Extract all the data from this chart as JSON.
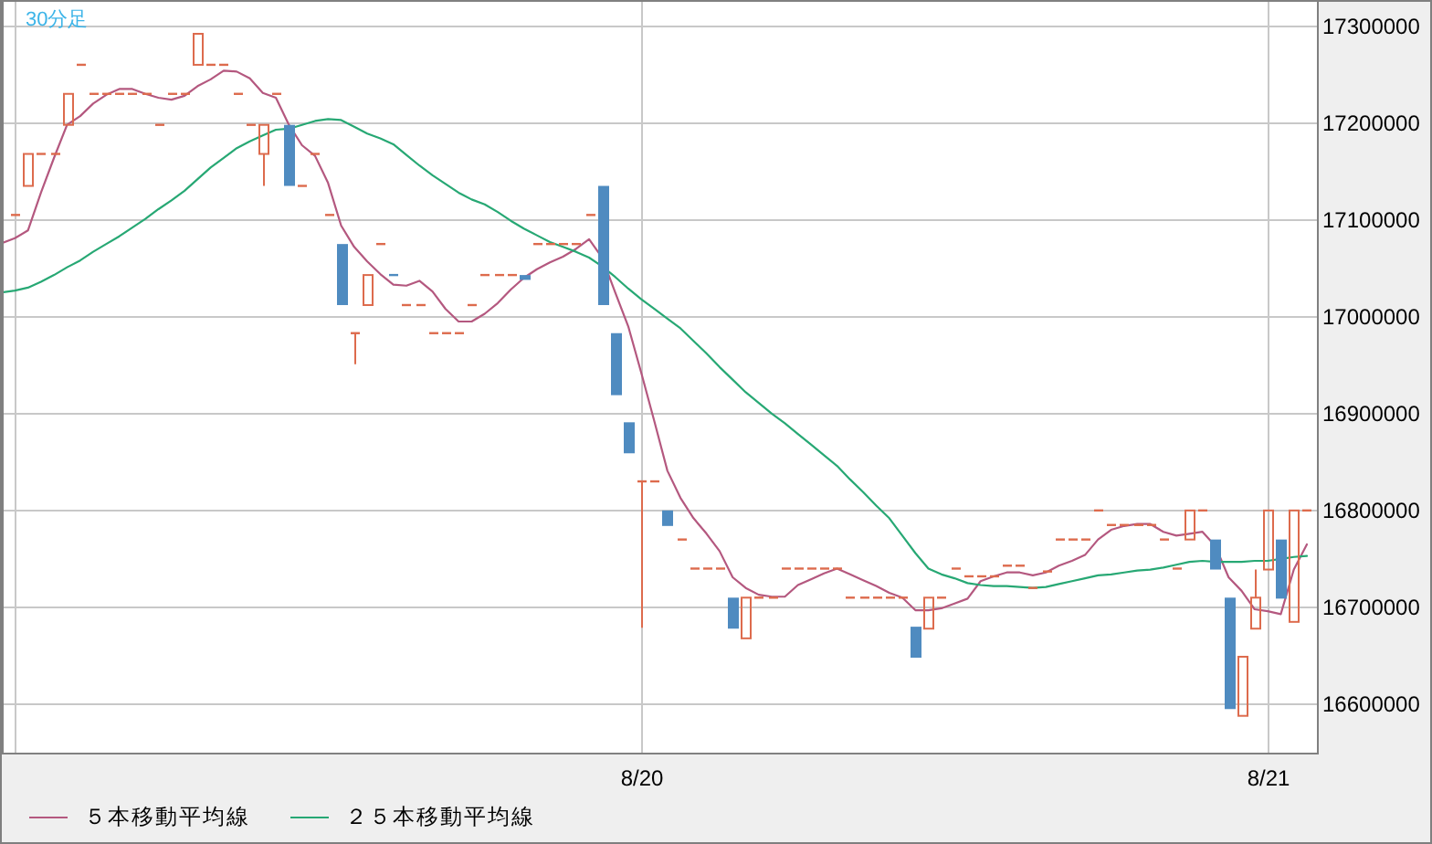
{
  "chart_data": {
    "type": "candlestick",
    "title": "30分足",
    "categories": [
      null,
      null,
      null,
      null,
      null,
      null,
      null,
      null,
      null,
      null,
      null,
      null,
      null,
      null,
      null,
      null,
      null,
      null,
      null,
      null,
      null,
      null,
      null,
      null,
      null,
      null,
      null,
      null,
      null,
      null,
      null,
      null,
      null,
      null,
      null,
      null,
      null,
      null,
      null,
      null,
      null,
      null,
      null,
      null,
      null,
      null,
      null,
      null,
      null,
      "8/20",
      null,
      null,
      null,
      null,
      null,
      null,
      null,
      null,
      null,
      null,
      null,
      null,
      null,
      null,
      null,
      null,
      null,
      null,
      null,
      null,
      null,
      null,
      null,
      null,
      null,
      null,
      null,
      null,
      null,
      null,
      null,
      null,
      null,
      null,
      null,
      null,
      null,
      null,
      null,
      null,
      null,
      null,
      null,
      null,
      null,
      null,
      null,
      "8/21",
      null,
      null,
      null
    ],
    "ohlc": [
      null,
      [
        17105000,
        17105000,
        17105000,
        17105000
      ],
      [
        17135000,
        17168000,
        17135000,
        17168000
      ],
      [
        17168000,
        17168000,
        17168000,
        17168000
      ],
      [
        17168000,
        17168000,
        17168000,
        17168000
      ],
      [
        17198000,
        17230000,
        17198000,
        17230000
      ],
      [
        17260000,
        17260000,
        17260000,
        17260000
      ],
      [
        17230000,
        17230000,
        17230000,
        17230000
      ],
      [
        17230000,
        17230000,
        17230000,
        17230000
      ],
      [
        17230000,
        17230000,
        17230000,
        17230000
      ],
      [
        17230000,
        17230000,
        17230000,
        17230000
      ],
      [
        17230000,
        17230000,
        17230000,
        17230000
      ],
      [
        17198000,
        17198000,
        17198000,
        17198000
      ],
      [
        17230000,
        17230000,
        17230000,
        17230000
      ],
      [
        17230000,
        17230000,
        17230000,
        17230000
      ],
      [
        17260000,
        17292000,
        17260000,
        17292000
      ],
      [
        17260000,
        17260000,
        17260000,
        17260000
      ],
      [
        17260000,
        17260000,
        17260000,
        17260000
      ],
      [
        17230000,
        17230000,
        17230000,
        17230000
      ],
      [
        17198000,
        17198000,
        17198000,
        17198000
      ],
      [
        17168000,
        17198000,
        17135000,
        17198000
      ],
      [
        17230000,
        17230000,
        17230000,
        17230000
      ],
      [
        17198000,
        17198000,
        17135000,
        17135000
      ],
      [
        17135000,
        17135000,
        17135000,
        17135000
      ],
      [
        17168000,
        17168000,
        17168000,
        17168000
      ],
      [
        17105000,
        17105000,
        17105000,
        17105000
      ],
      [
        17075000,
        17075000,
        17012000,
        17012000
      ],
      [
        16983000,
        16983000,
        16951000,
        16983000
      ],
      [
        17012000,
        17043000,
        17012000,
        17043000
      ],
      [
        17075000,
        17075000,
        17075000,
        17075000
      ],
      [
        17043000,
        17043000,
        17043000,
        17043000
      ],
      [
        17012000,
        17012000,
        17012000,
        17012000
      ],
      [
        17012000,
        17012000,
        17012000,
        17012000
      ],
      [
        16983000,
        16983000,
        16983000,
        16983000
      ],
      [
        16983000,
        16983000,
        16983000,
        16983000
      ],
      [
        16983000,
        16983000,
        16983000,
        16983000
      ],
      [
        17012000,
        17012000,
        17012000,
        17012000
      ],
      [
        17043000,
        17043000,
        17043000,
        17043000
      ],
      [
        17043000,
        17043000,
        17043000,
        17043000
      ],
      [
        17043000,
        17043000,
        17043000,
        17043000
      ],
      [
        17043000,
        17043000,
        17038000,
        17038000
      ],
      [
        17075000,
        17075000,
        17075000,
        17075000
      ],
      [
        17075000,
        17075000,
        17075000,
        17075000
      ],
      [
        17075000,
        17075000,
        17075000,
        17075000
      ],
      [
        17075000,
        17075000,
        17075000,
        17075000
      ],
      [
        17105000,
        17105000,
        17105000,
        17105000
      ],
      [
        17135000,
        17135000,
        17012000,
        17012000
      ],
      [
        16983000,
        16983000,
        16919000,
        16919000
      ],
      [
        16891000,
        16891000,
        16859000,
        16859000
      ],
      [
        16830000,
        16830000,
        16679000,
        16830000
      ],
      [
        16830000,
        16830000,
        16830000,
        16830000
      ],
      [
        16800000,
        16800000,
        16784000,
        16784000
      ],
      [
        16770000,
        16770000,
        16770000,
        16770000
      ],
      [
        16740000,
        16740000,
        16740000,
        16740000
      ],
      [
        16740000,
        16740000,
        16740000,
        16740000
      ],
      [
        16740000,
        16740000,
        16740000,
        16740000
      ],
      [
        16710000,
        16710000,
        16678000,
        16678000
      ],
      [
        16668000,
        16710000,
        16668000,
        16710000
      ],
      [
        16710000,
        16710000,
        16710000,
        16710000
      ],
      [
        16710000,
        16710000,
        16710000,
        16710000
      ],
      [
        16740000,
        16740000,
        16740000,
        16740000
      ],
      [
        16740000,
        16740000,
        16740000,
        16740000
      ],
      [
        16740000,
        16740000,
        16740000,
        16740000
      ],
      [
        16740000,
        16740000,
        16740000,
        16740000
      ],
      [
        16740000,
        16740000,
        16740000,
        16740000
      ],
      [
        16710000,
        16710000,
        16710000,
        16710000
      ],
      [
        16710000,
        16710000,
        16710000,
        16710000
      ],
      [
        16710000,
        16710000,
        16710000,
        16710000
      ],
      [
        16710000,
        16710000,
        16710000,
        16710000
      ],
      [
        16710000,
        16710000,
        16710000,
        16710000
      ],
      [
        16680000,
        16680000,
        16648000,
        16648000
      ],
      [
        16678000,
        16710000,
        16678000,
        16710000
      ],
      [
        16710000,
        16710000,
        16710000,
        16710000
      ],
      [
        16740000,
        16740000,
        16740000,
        16740000
      ],
      [
        16732000,
        16732000,
        16732000,
        16732000
      ],
      [
        16732000,
        16732000,
        16732000,
        16732000
      ],
      [
        16732000,
        16732000,
        16732000,
        16732000
      ],
      [
        16743000,
        16743000,
        16743000,
        16743000
      ],
      [
        16743000,
        16743000,
        16743000,
        16743000
      ],
      [
        16720000,
        16720000,
        16720000,
        16720000
      ],
      [
        16737000,
        16737000,
        16737000,
        16737000
      ],
      [
        16770000,
        16770000,
        16770000,
        16770000
      ],
      [
        16770000,
        16770000,
        16770000,
        16770000
      ],
      [
        16770000,
        16770000,
        16770000,
        16770000
      ],
      [
        16800000,
        16800000,
        16800000,
        16800000
      ],
      [
        16785000,
        16785000,
        16785000,
        16785000
      ],
      [
        16785000,
        16785000,
        16785000,
        16785000
      ],
      [
        16785000,
        16785000,
        16785000,
        16785000
      ],
      [
        16785000,
        16785000,
        16785000,
        16785000
      ],
      [
        16770000,
        16770000,
        16770000,
        16770000
      ],
      [
        16740000,
        16740000,
        16740000,
        16740000
      ],
      [
        16770000,
        16800000,
        16770000,
        16800000
      ],
      [
        16800000,
        16800000,
        16800000,
        16800000
      ],
      [
        16770000,
        16770000,
        16739000,
        16739000
      ],
      [
        16710000,
        16710000,
        16595000,
        16595000
      ],
      [
        16588000,
        16649000,
        16588000,
        16649000
      ],
      [
        16678000,
        16739000,
        16678000,
        16710000
      ],
      [
        16739000,
        16800000,
        16739000,
        16800000
      ],
      [
        16770000,
        16770000,
        16709000,
        16709000
      ],
      [
        16685000,
        16800000,
        16685000,
        16800000
      ],
      [
        16800000,
        16800000,
        16800000,
        16800000
      ]
    ],
    "colors": [
      null,
      "#dd6b4d",
      "#dd6b4d",
      "#dd6b4d",
      "#dd6b4d",
      "#dd6b4d",
      "#dd6b4d",
      "#dd6b4d",
      "#dd6b4d",
      "#dd6b4d",
      "#dd6b4d",
      "#dd6b4d",
      "#dd6b4d",
      "#dd6b4d",
      "#dd6b4d",
      "#dd6b4d",
      "#dd6b4d",
      "#dd6b4d",
      "#dd6b4d",
      "#dd6b4d",
      "#dd6b4d",
      "#dd6b4d",
      "#4f8bc0",
      "#dd6b4d",
      "#dd6b4d",
      "#dd6b4d",
      "#4f8bc0",
      "#dd6b4d",
      "#dd6b4d",
      "#dd6b4d",
      "#4f8bc0",
      "#dd6b4d",
      "#dd6b4d",
      "#dd6b4d",
      "#dd6b4d",
      "#dd6b4d",
      "#dd6b4d",
      "#dd6b4d",
      "#dd6b4d",
      "#dd6b4d",
      "#4f8bc0",
      "#dd6b4d",
      "#dd6b4d",
      "#dd6b4d",
      "#dd6b4d",
      "#dd6b4d",
      "#4f8bc0",
      "#4f8bc0",
      "#4f8bc0",
      "#dd6b4d",
      "#dd6b4d",
      "#4f8bc0",
      "#dd6b4d",
      "#dd6b4d",
      "#dd6b4d",
      "#dd6b4d",
      "#4f8bc0",
      "#dd6b4d",
      "#dd6b4d",
      "#dd6b4d",
      "#dd6b4d",
      "#dd6b4d",
      "#dd6b4d",
      "#dd6b4d",
      "#dd6b4d",
      "#dd6b4d",
      "#dd6b4d",
      "#dd6b4d",
      "#dd6b4d",
      "#dd6b4d",
      "#4f8bc0",
      "#dd6b4d",
      "#dd6b4d",
      "#dd6b4d",
      "#dd6b4d",
      "#dd6b4d",
      "#dd6b4d",
      "#dd6b4d",
      "#dd6b4d",
      "#dd6b4d",
      "#dd6b4d",
      "#dd6b4d",
      "#dd6b4d",
      "#dd6b4d",
      "#dd6b4d",
      "#dd6b4d",
      "#dd6b4d",
      "#dd6b4d",
      "#dd6b4d",
      "#dd6b4d",
      "#dd6b4d",
      "#dd6b4d",
      "#dd6b4d",
      "#4f8bc0",
      "#4f8bc0",
      "#dd6b4d",
      "#dd6b4d",
      "#dd6b4d",
      "#4f8bc0",
      "#dd6b4d",
      "#dd6b4d"
    ],
    "series": [
      {
        "name": "５本移動平均線",
        "type": "line",
        "color": "#b4587f",
        "values": [
          17076000,
          17081000,
          17089000,
          17128000,
          17164000,
          17198000,
          17207000,
          17220000,
          17229000,
          17235000,
          17235000,
          17230000,
          17226000,
          17224000,
          17228000,
          17238000,
          17245000,
          17254000,
          17253000,
          17246000,
          17231000,
          17226000,
          17198000,
          17177000,
          17166000,
          17138000,
          17094000,
          17072000,
          17057000,
          17044000,
          17033000,
          17032000,
          17037000,
          17026000,
          17008000,
          16995000,
          16995000,
          17003000,
          17014000,
          17028000,
          17040000,
          17049000,
          17056000,
          17062000,
          17070000,
          17080000,
          17061000,
          17025000,
          16990000,
          16942000,
          16892000,
          16841000,
          16813000,
          16792000,
          16776000,
          16758000,
          16731000,
          16720000,
          16713000,
          16711000,
          16711000,
          16723000,
          16729000,
          16735000,
          16740000,
          16734000,
          16728000,
          16722000,
          16715000,
          16710000,
          16697000,
          16697000,
          16699000,
          16704000,
          16709000,
          16727000,
          16732000,
          16736000,
          16736000,
          16733000,
          16736000,
          16743000,
          16748000,
          16754000,
          16770000,
          16780000,
          16784000,
          16786000,
          16786000,
          16778000,
          16774000,
          16776000,
          16778000,
          16763000,
          16731000,
          16717000,
          16698000,
          16696000,
          16693000,
          16739000,
          16765000
        ]
      },
      {
        "name": "２５本移動平均線",
        "type": "line",
        "color": "#27a874",
        "values": [
          17025000,
          17027000,
          17030000,
          17036000,
          17043000,
          17051000,
          17058000,
          17067000,
          17075000,
          17083000,
          17092000,
          17101000,
          17111000,
          17120000,
          17130000,
          17142000,
          17154000,
          17164000,
          17174000,
          17181000,
          17187000,
          17193000,
          17194000,
          17198000,
          17202000,
          17204000,
          17203000,
          17196000,
          17189000,
          17184000,
          17178000,
          17167000,
          17156000,
          17146000,
          17137000,
          17128000,
          17121000,
          17116000,
          17108000,
          17099000,
          17091000,
          17084000,
          17077000,
          17072000,
          17067000,
          17061000,
          17052000,
          17041000,
          17029000,
          17018000,
          17008000,
          16998000,
          16988000,
          16975000,
          16962000,
          16948000,
          16935000,
          16922000,
          16911000,
          16900000,
          16890000,
          16879000,
          16868000,
          16857000,
          16846000,
          16832000,
          16819000,
          16805000,
          16792000,
          16774000,
          16756000,
          16740000,
          16734000,
          16730000,
          16725000,
          16723000,
          16722000,
          16722000,
          16721000,
          16720000,
          16721000,
          16724000,
          16727000,
          16730000,
          16733000,
          16734000,
          16736000,
          16738000,
          16739000,
          16741000,
          16744000,
          16747000,
          16748000,
          16747000,
          16747000,
          16747000,
          16748000,
          16748000,
          16750000,
          16752000,
          16753000
        ]
      }
    ],
    "ylim": [
      16550000,
      17325000
    ],
    "yticks": [
      16600000,
      16700000,
      16800000,
      16900000,
      17000000,
      17100000,
      17200000,
      17300000
    ],
    "grid": true,
    "legend": "bottom"
  }
}
